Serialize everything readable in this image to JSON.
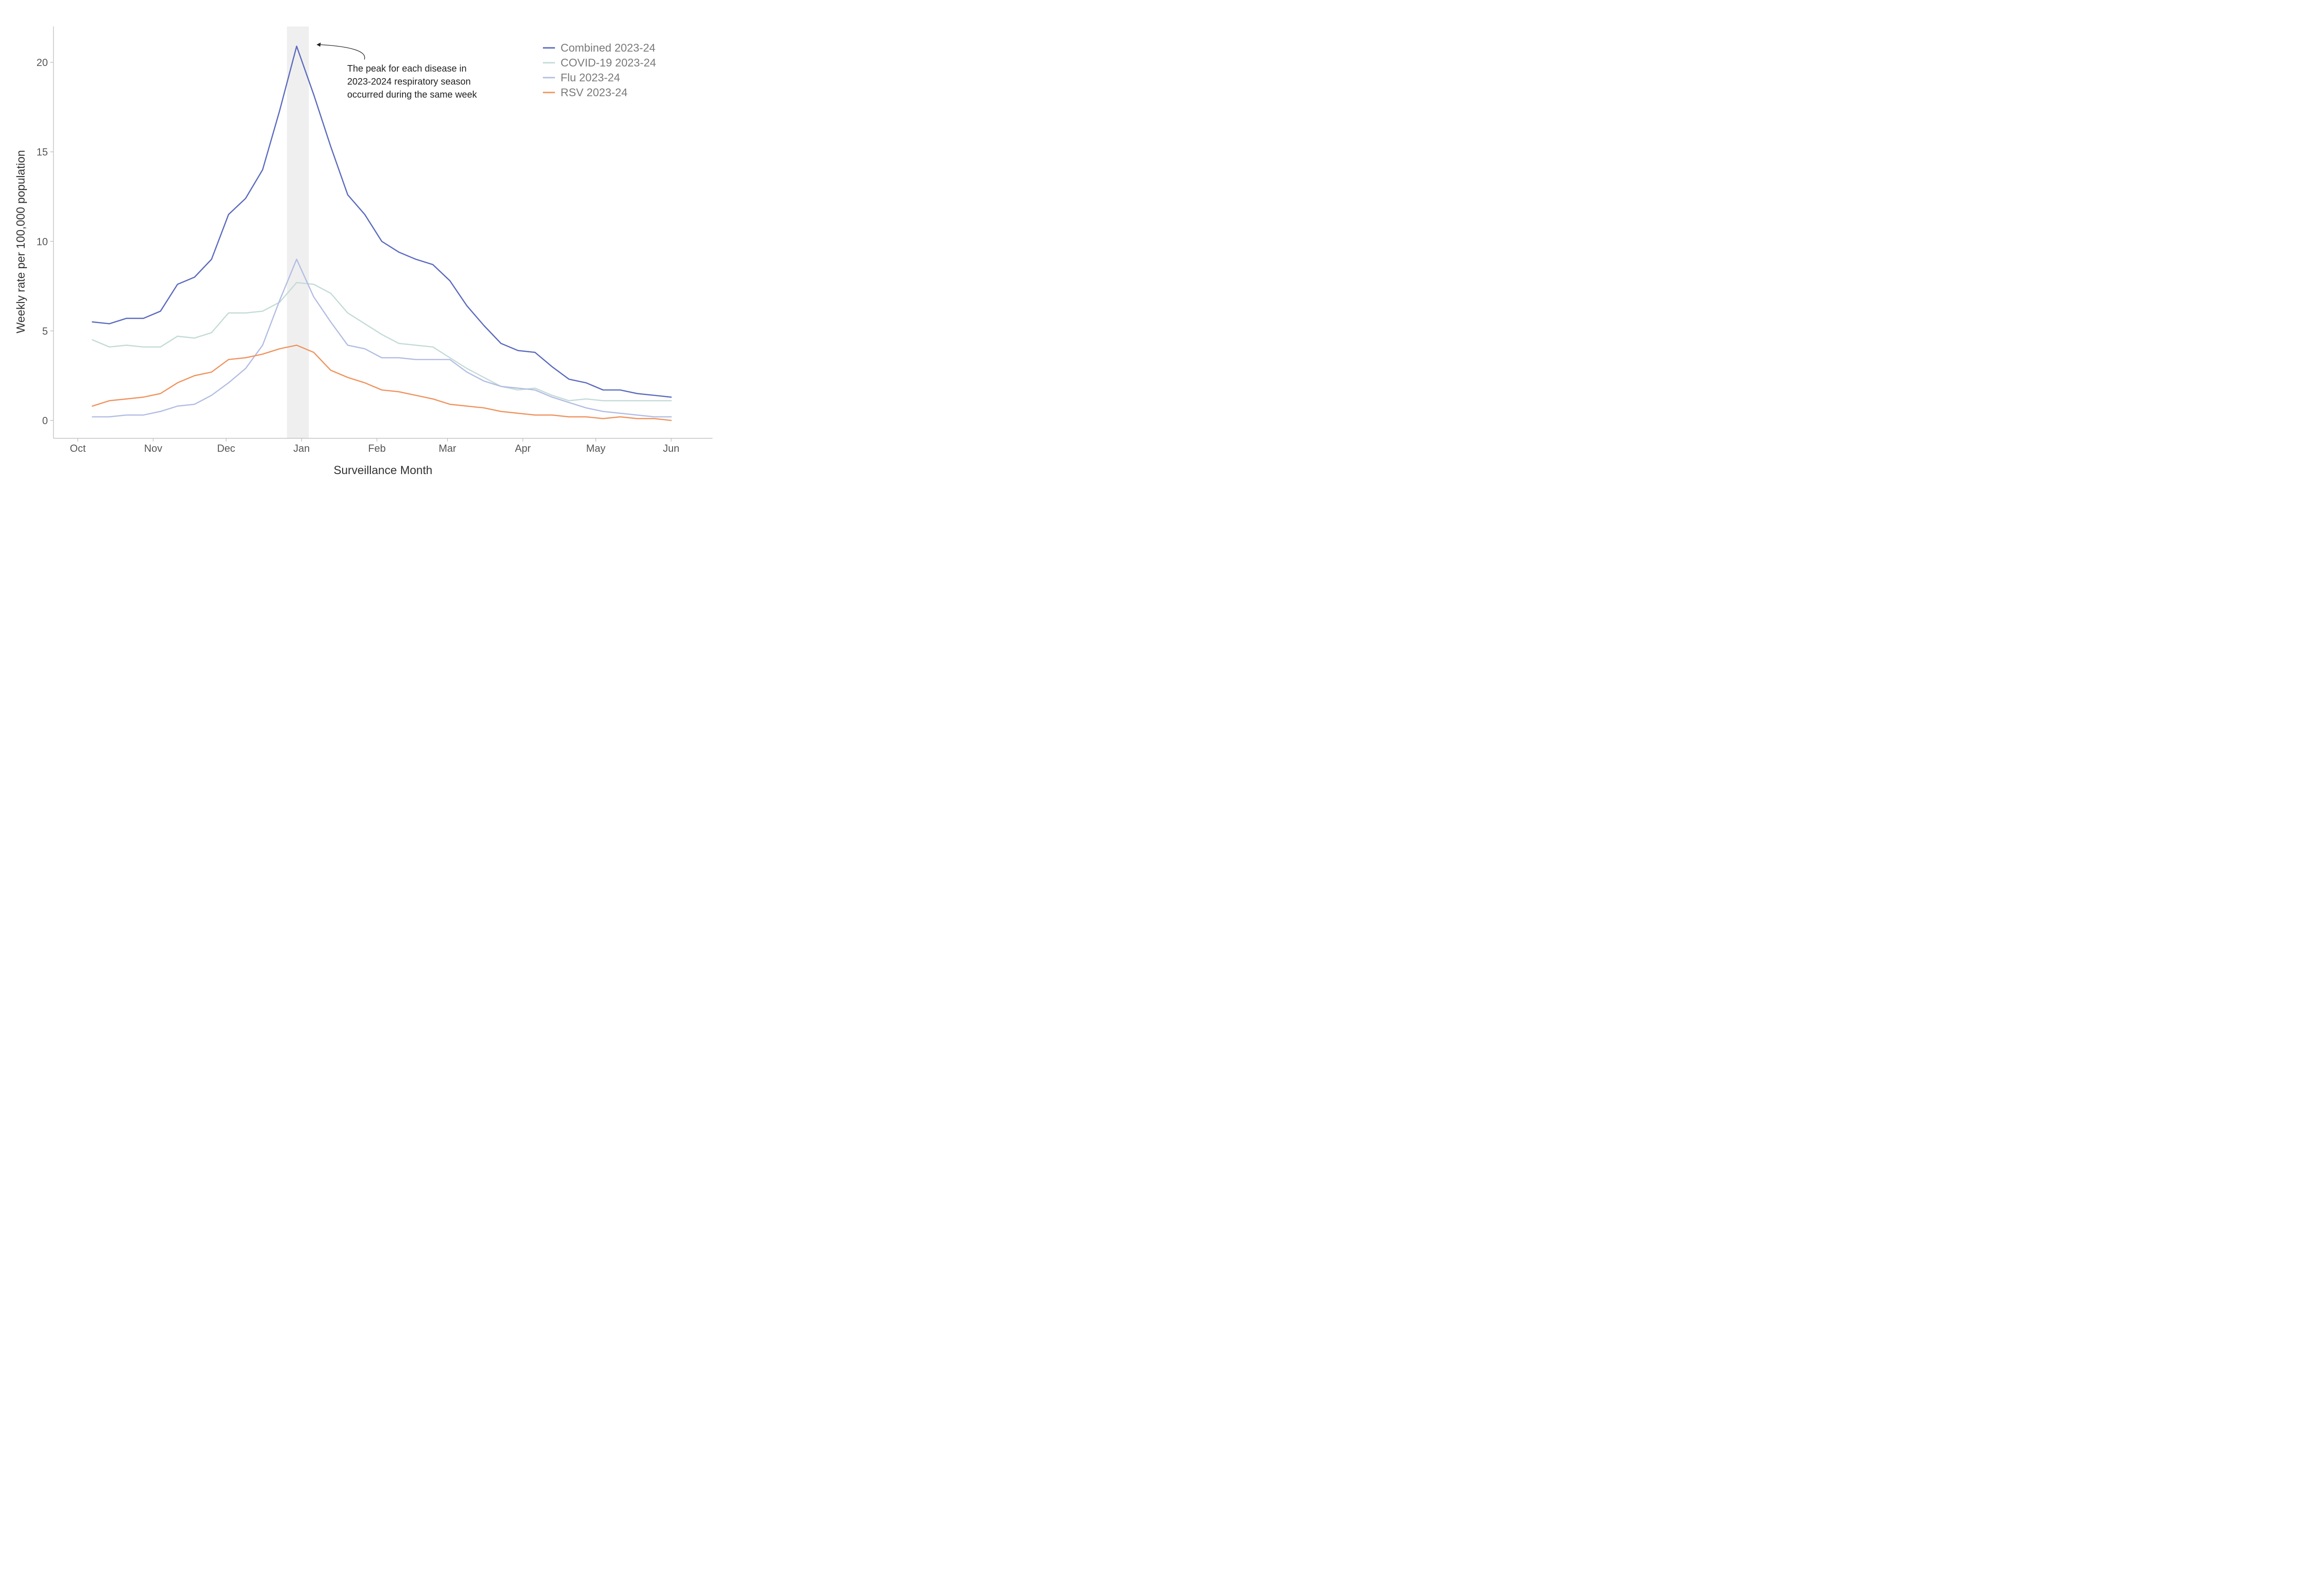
{
  "chart_data": {
    "type": "line",
    "xlabel": "Surveillance Month",
    "ylabel": "Weekly rate per 100,000 population",
    "x_ticks": [
      "Oct",
      "Nov",
      "Dec",
      "Jan",
      "Feb",
      "Mar",
      "Apr",
      "May",
      "Jun"
    ],
    "y_ticks": [
      0,
      5,
      10,
      15,
      20
    ],
    "ylim": [
      -1,
      22
    ],
    "xlim": [
      "2023-09-21",
      "2024-06-18"
    ],
    "x": [
      "2023-10-07",
      "2023-10-14",
      "2023-10-21",
      "2023-10-28",
      "2023-11-04",
      "2023-11-11",
      "2023-11-18",
      "2023-11-25",
      "2023-12-02",
      "2023-12-09",
      "2023-12-16",
      "2023-12-23",
      "2023-12-30",
      "2024-01-06",
      "2024-01-13",
      "2024-01-20",
      "2024-01-27",
      "2024-02-03",
      "2024-02-10",
      "2024-02-17",
      "2024-02-24",
      "2024-03-02",
      "2024-03-09",
      "2024-03-16",
      "2024-03-23",
      "2024-03-30",
      "2024-04-06",
      "2024-04-13",
      "2024-04-20",
      "2024-04-27",
      "2024-05-04",
      "2024-05-11",
      "2024-05-18",
      "2024-05-25",
      "2024-06-01"
    ],
    "highlight_range": [
      "2023-12-26",
      "2024-01-04"
    ],
    "series": [
      {
        "name": "Combined 2023-24",
        "color": "#5b6abf",
        "values": [
          5.5,
          5.4,
          5.7,
          5.7,
          6.1,
          7.6,
          8.0,
          9.0,
          11.5,
          12.4,
          14.0,
          17.3,
          20.9,
          18.2,
          15.3,
          12.6,
          11.5,
          10.0,
          9.4,
          9.0,
          8.7,
          7.8,
          6.4,
          5.3,
          4.3,
          3.9,
          3.8,
          3.0,
          2.3,
          2.1,
          1.7,
          1.7,
          1.5,
          1.4,
          1.3
        ]
      },
      {
        "name": "COVID-19 2023-24",
        "color": "#c3dbd7",
        "values": [
          4.5,
          4.1,
          4.2,
          4.1,
          4.1,
          4.7,
          4.6,
          4.9,
          6.0,
          6.0,
          6.1,
          6.6,
          7.7,
          7.6,
          7.1,
          6.0,
          5.4,
          4.8,
          4.3,
          4.2,
          4.1,
          3.5,
          2.9,
          2.4,
          1.9,
          1.7,
          1.8,
          1.4,
          1.1,
          1.2,
          1.1,
          1.1,
          1.1,
          1.1,
          1.1
        ]
      },
      {
        "name": "Flu 2023-24",
        "color": "#b3bde3",
        "values": [
          0.2,
          0.2,
          0.3,
          0.3,
          0.5,
          0.8,
          0.9,
          1.4,
          2.1,
          2.9,
          4.2,
          6.7,
          9.0,
          6.9,
          5.5,
          4.2,
          4.0,
          3.5,
          3.5,
          3.4,
          3.4,
          3.4,
          2.7,
          2.2,
          1.9,
          1.8,
          1.7,
          1.3,
          1.0,
          0.7,
          0.5,
          0.4,
          0.3,
          0.2,
          0.2
        ]
      },
      {
        "name": "RSV 2023-24",
        "color": "#f0935e",
        "values": [
          0.8,
          1.1,
          1.2,
          1.3,
          1.5,
          2.1,
          2.5,
          2.7,
          3.4,
          3.5,
          3.7,
          4.0,
          4.2,
          3.8,
          2.8,
          2.4,
          2.1,
          1.7,
          1.6,
          1.4,
          1.2,
          0.9,
          0.8,
          0.7,
          0.5,
          0.4,
          0.3,
          0.3,
          0.2,
          0.2,
          0.1,
          0.2,
          0.1,
          0.1,
          0.0
        ]
      }
    ],
    "annotation": {
      "lines": [
        "The peak for each disease in",
        "2023-2024 respiratory season",
        "occurred during the same week"
      ]
    },
    "legend_position": "top-right",
    "grid": false
  }
}
